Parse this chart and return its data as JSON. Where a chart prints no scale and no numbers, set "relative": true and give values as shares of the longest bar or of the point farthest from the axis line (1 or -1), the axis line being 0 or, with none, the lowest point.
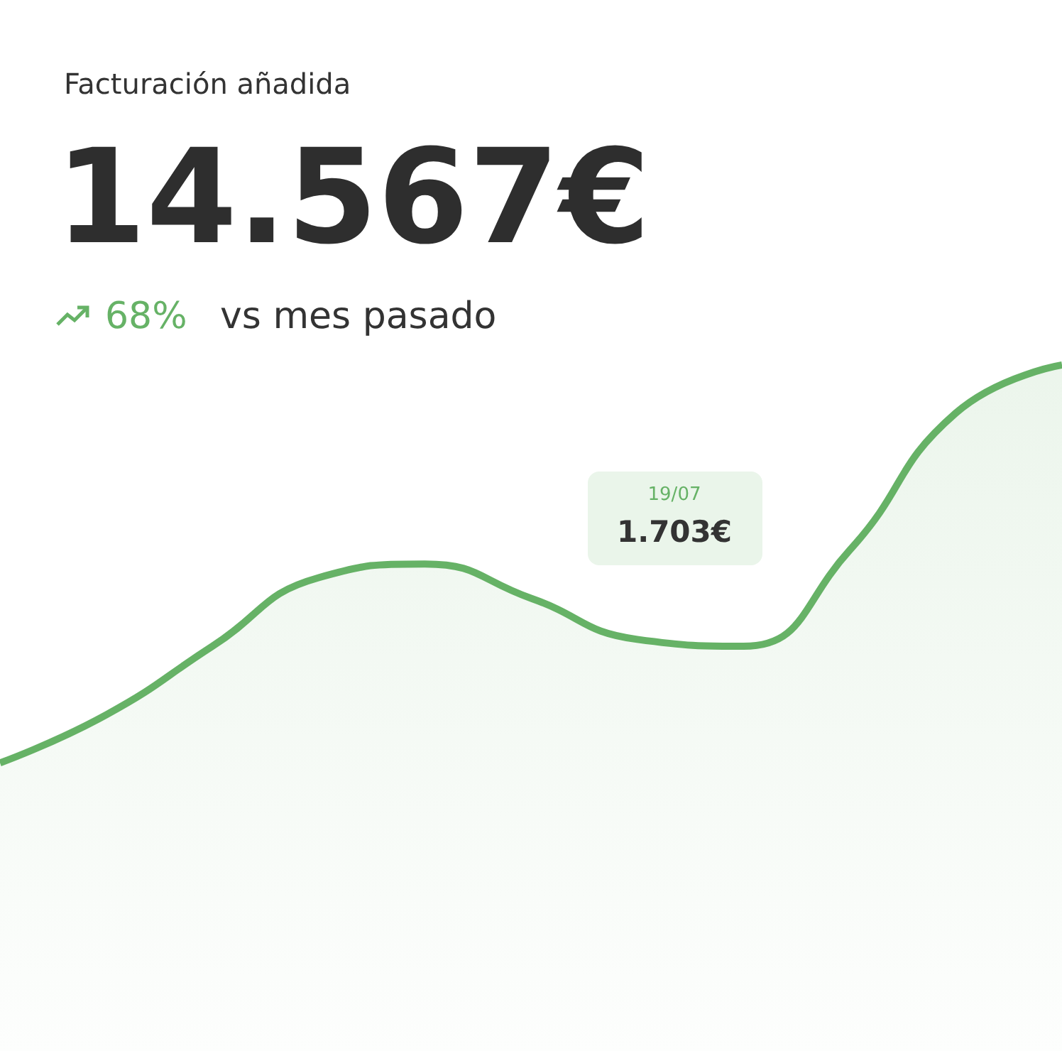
{
  "chart_data": {
    "type": "area",
    "title": "Facturación añadida",
    "subtitle": "14.567€",
    "categories": [
      null,
      null,
      null,
      null,
      null,
      null,
      null,
      null,
      null,
      null,
      null
    ],
    "series": [
      {
        "color": "#66b266",
        "values": [
          0.42,
          0.49,
          0.59,
          0.69,
          0.71,
          0.66,
          0.6,
          0.59,
          0.73,
          0.93,
          1.0
        ]
      }
    ],
    "relative": true,
    "annotations": [
      "68%",
      "vs mes pasado",
      "19/07",
      "1.703€"
    ],
    "marker": "none"
  }
}
